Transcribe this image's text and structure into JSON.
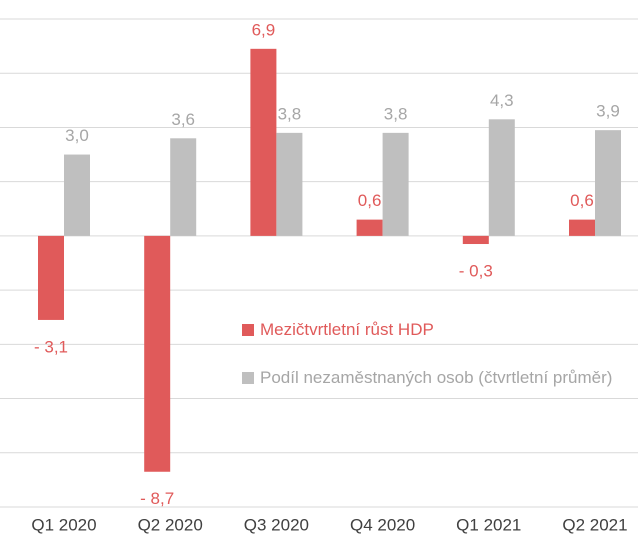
{
  "chart_data": {
    "type": "bar",
    "categories": [
      "Q1 2020",
      "Q2 2020",
      "Q3 2020",
      "Q4 2020",
      "Q1 2021",
      "Q2 2021"
    ],
    "series": [
      {
        "name": "Mezičtvrtletní růst HDP",
        "color": "#e05a5a",
        "label_color": "#e05a5a",
        "values": [
          -3.1,
          -8.7,
          6.9,
          0.6,
          -0.3,
          0.6
        ],
        "value_labels": [
          "- 3,1",
          "- 8,7",
          "6,9",
          "0,6",
          "- 0,3",
          "0,6"
        ]
      },
      {
        "name": "Podíl nezaměstnaných osob (čtvrtletní průměr)",
        "color": "#bfbfbf",
        "label_color": "#a6a6a6",
        "values": [
          3.0,
          3.6,
          3.8,
          3.8,
          4.3,
          3.9
        ],
        "value_labels": [
          "3,0",
          "3,6",
          "3,8",
          "3,8",
          "4,3",
          "3,9"
        ]
      }
    ],
    "ylim": [
      -10,
      8
    ],
    "yticks": [
      -10,
      -8,
      -6,
      -4,
      -2,
      0,
      2,
      4,
      6,
      8
    ],
    "grid": true,
    "legend": "right"
  }
}
